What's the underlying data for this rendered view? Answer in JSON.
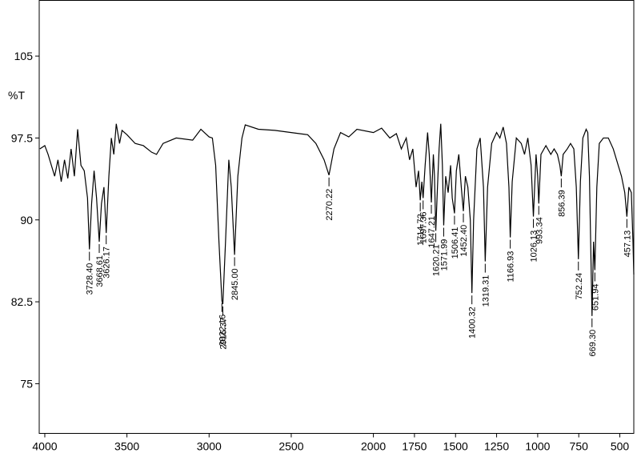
{
  "chart_data": {
    "type": "line",
    "ylabel": "%T",
    "xlim": [
      4034,
      415
    ],
    "ylim": [
      70.45,
      110.1
    ],
    "xticks": [
      4000,
      3500,
      3000,
      2500,
      2000,
      1750,
      1500,
      1250,
      1000,
      750,
      500
    ],
    "yticks": [
      75,
      82.5,
      90,
      97.5,
      105
    ],
    "color": "#000000",
    "x": [
      4030,
      4000,
      3980,
      3960,
      3940,
      3920,
      3900,
      3880,
      3860,
      3840,
      3820,
      3800,
      3780,
      3760,
      3740,
      3728.4,
      3715,
      3700,
      3685,
      3668.61,
      3655,
      3640,
      3626.17,
      3610,
      3595,
      3580,
      3565,
      3545,
      3530,
      3500,
      3450,
      3400,
      3350,
      3320,
      3280,
      3200,
      3100,
      3050,
      3000,
      2980,
      2960,
      2940,
      2922.16,
      2916.37,
      2900,
      2880,
      2865,
      2845,
      2825,
      2800,
      2780,
      2700,
      2600,
      2500,
      2400,
      2350,
      2300,
      2270.22,
      2240,
      2200,
      2150,
      2100,
      2000,
      1950,
      1900,
      1860,
      1830,
      1800,
      1780,
      1760,
      1740,
      1725,
      1714.72,
      1705,
      1697.36,
      1685,
      1670,
      1660,
      1647.21,
      1635,
      1628,
      1620.21,
      1610,
      1600,
      1590,
      1580,
      1571.99,
      1560,
      1545,
      1530,
      1520,
      1506.41,
      1495,
      1480,
      1465,
      1452.4,
      1440,
      1425,
      1410,
      1400.32,
      1390,
      1370,
      1350,
      1330,
      1319.31,
      1305,
      1280,
      1250,
      1230,
      1210,
      1190,
      1175,
      1166.93,
      1155,
      1130,
      1100,
      1080,
      1060,
      1040,
      1026.13,
      1010,
      1000,
      993.34,
      980,
      950,
      920,
      900,
      880,
      865,
      856.39,
      845,
      820,
      800,
      780,
      765,
      752.24,
      740,
      725,
      705,
      695,
      685,
      669.3,
      660,
      651.94,
      640,
      625,
      600,
      570,
      540,
      510,
      490,
      470,
      457.13,
      445,
      430,
      420,
      415
    ],
    "values": [
      96.5,
      96.8,
      96.0,
      95.0,
      94.0,
      95.5,
      93.5,
      95.5,
      93.8,
      96.5,
      94.0,
      98.3,
      95.0,
      94.5,
      92.0,
      87.3,
      91.5,
      94.5,
      92.0,
      88.0,
      91.5,
      93.0,
      88.8,
      94.0,
      97.5,
      96.0,
      98.8,
      97.0,
      98.2,
      97.8,
      97.0,
      96.8,
      96.2,
      96.0,
      97.0,
      97.5,
      97.3,
      98.3,
      97.6,
      97.5,
      95.0,
      88.0,
      82.6,
      82.3,
      88.0,
      95.5,
      93.0,
      86.8,
      94.0,
      97.5,
      98.7,
      98.3,
      98.2,
      98.0,
      97.8,
      97.0,
      95.5,
      94.1,
      96.5,
      98.0,
      97.6,
      98.3,
      98.0,
      98.4,
      97.5,
      97.9,
      96.5,
      97.5,
      95.5,
      96.5,
      93.0,
      94.5,
      91.8,
      93.5,
      92.0,
      95.0,
      98.0,
      96.0,
      91.6,
      96.0,
      94.0,
      89.0,
      93.0,
      96.5,
      98.8,
      95.0,
      89.5,
      94.0,
      92.5,
      95.0,
      92.0,
      90.6,
      94.5,
      96.0,
      93.0,
      90.8,
      94.0,
      93.0,
      90.0,
      83.3,
      90.0,
      96.5,
      97.5,
      93.0,
      86.2,
      93.0,
      97.0,
      98.0,
      97.5,
      98.5,
      97.0,
      93.0,
      88.4,
      93.5,
      97.5,
      97.0,
      96.0,
      97.5,
      95.0,
      90.3,
      96.0,
      94.0,
      91.5,
      96.0,
      96.8,
      96.0,
      96.5,
      96.0,
      95.0,
      94.0,
      96.0,
      96.5,
      97.0,
      96.5,
      93.0,
      86.4,
      93.5,
      97.5,
      98.3,
      98.0,
      94.0,
      81.2,
      88.0,
      85.4,
      93.0,
      97.0,
      97.5,
      97.5,
      96.5,
      95.0,
      94.0,
      92.5,
      90.3,
      93.0,
      92.5,
      88.0,
      85.0
    ],
    "peaks": {
      "x": [
        3728.4,
        3668.61,
        3626.17,
        2922.16,
        2916.37,
        2845,
        2270.22,
        1714.72,
        1697.36,
        1647.21,
        1620.21,
        1571.99,
        1506.41,
        1452.4,
        1400.32,
        1319.31,
        1166.93,
        1026.13,
        993.34,
        856.39,
        752.24,
        669.3,
        651.94,
        457.13
      ],
      "labels": [
        "3728.40",
        "3668.61",
        "3626.17",
        "2922.16",
        "2916.37",
        "2845.00",
        "2270.22",
        "1714.72",
        "1697.36",
        "1647.21",
        "1620.21",
        "1571.99",
        "1506.41",
        "1452.40",
        "1400.32",
        "1319.31",
        "1166.93",
        "1026.13",
        "993.34",
        "856.39",
        "752.24",
        "669.30",
        "651.94",
        "457.13"
      ]
    }
  }
}
